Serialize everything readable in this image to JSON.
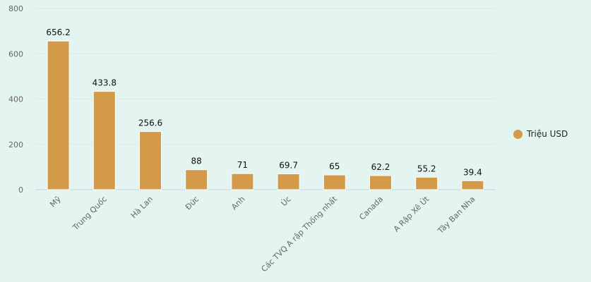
{
  "chart_data": {
    "type": "bar",
    "categories": [
      "Mỹ",
      "Trung Quốc",
      "Hà Lan",
      "Đức",
      "Anh",
      "Úc",
      "Các TVQ A rập Thống nhất",
      "Canada",
      "A Rập Xê Út",
      "Tây Ban Nha"
    ],
    "series": [
      {
        "name": "Triệu USD",
        "values": [
          656.2,
          433.8,
          256.6,
          88,
          71,
          69.7,
          65,
          62.2,
          55.2,
          39.4
        ]
      }
    ],
    "data_labels": [
      "656.2",
      "433.8",
      "256.6",
      "88",
      "71",
      "69.7",
      "65",
      "62.2",
      "55.2",
      "39.4"
    ],
    "y_ticks": [
      "0",
      "200",
      "400",
      "600",
      "800"
    ],
    "ylim": [
      0,
      800
    ],
    "grid": true,
    "legend": "right",
    "bar_color": "#d39a49"
  }
}
